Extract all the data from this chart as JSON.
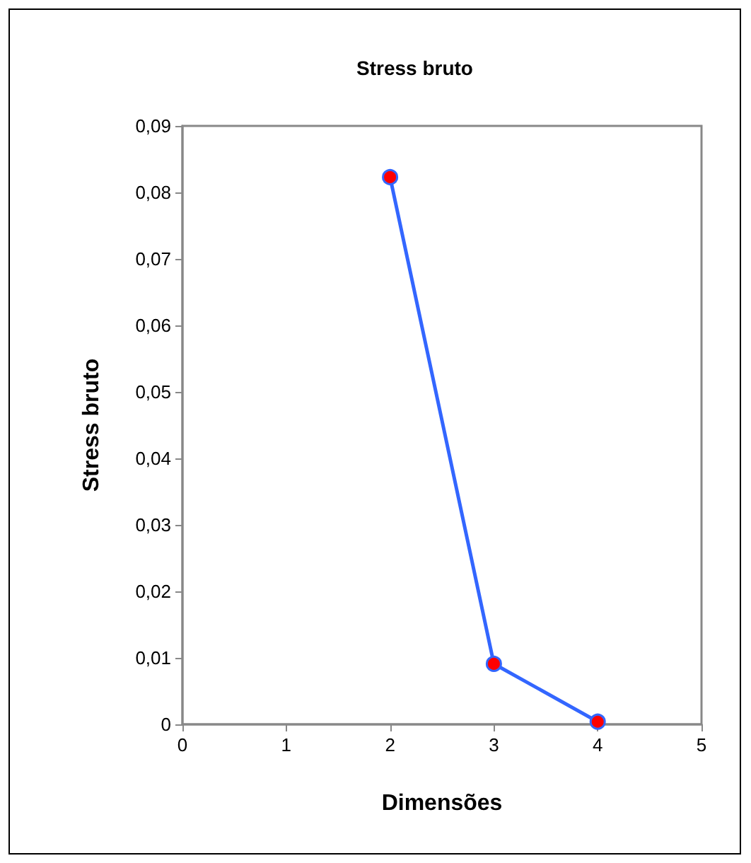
{
  "chart_data": {
    "type": "line",
    "title": "Stress bruto",
    "xlabel": "Dimensões",
    "ylabel": "Stress bruto",
    "x": [
      2,
      3,
      4
    ],
    "series": [
      {
        "color": "#3366ff",
        "colors": [
          "#ff0000",
          "#ff0000",
          "#ff0000"
        ],
        "values": [
          0.0823,
          0.0091,
          0.0004
        ]
      }
    ],
    "xlim": [
      0,
      5
    ],
    "xticks": [
      0,
      1,
      2,
      3,
      4,
      5
    ],
    "ylim": [
      0,
      0.09
    ],
    "yticks": [
      0,
      {
        "value": 0.01,
        "label": "0,01"
      },
      {
        "value": 0.02,
        "label": "0,02"
      },
      {
        "value": 0.03,
        "label": "0,03"
      },
      {
        "value": 0.04,
        "label": "0,04"
      },
      {
        "value": 0.05,
        "label": "0,05"
      },
      {
        "value": 0.06,
        "label": "0,06"
      },
      {
        "value": 0.07,
        "label": "0,07"
      },
      {
        "value": 0.08,
        "label": "0,08"
      },
      {
        "value": 0.09,
        "label": "0,09"
      }
    ],
    "grid": false,
    "marker": "circle",
    "line_style": "solid"
  }
}
